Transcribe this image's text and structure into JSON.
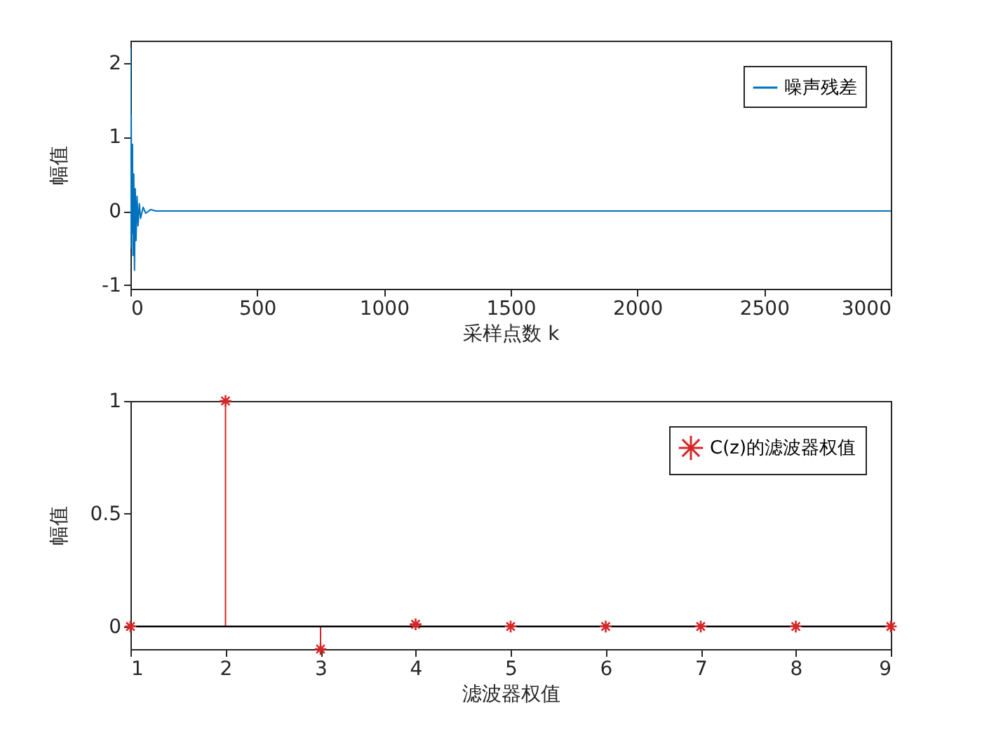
{
  "chart_data": [
    {
      "type": "line",
      "xlabel": "采样点数 k",
      "ylabel": "幅值",
      "xlim": [
        0,
        3000
      ],
      "ylim": [
        -1.05,
        2.3
      ],
      "xticks": [
        0,
        500,
        1000,
        1500,
        2000,
        2500,
        3000
      ],
      "yticks": [
        -1,
        0,
        1,
        2
      ],
      "legend": "top right",
      "grid": false,
      "series": [
        {
          "name": "噪声残差",
          "color": "#0072bd",
          "x": [
            0,
            1,
            3,
            5,
            8,
            10,
            13,
            16,
            19,
            22,
            26,
            30,
            35,
            40,
            50,
            60,
            80,
            100,
            3000
          ],
          "values": [
            2.2,
            -0.5,
            1.3,
            -0.3,
            0.9,
            -0.6,
            0.5,
            -0.8,
            0.3,
            -0.4,
            0.2,
            -0.2,
            0.1,
            -0.1,
            0.05,
            -0.03,
            0.02,
            0,
            0
          ]
        }
      ]
    },
    {
      "type": "lollipop",
      "xlabel": "滤波器权值",
      "ylabel": "幅值",
      "xlim": [
        1,
        9
      ],
      "ylim": [
        -0.1,
        1
      ],
      "xticks": [
        1,
        2,
        3,
        4,
        5,
        6,
        7,
        8,
        9
      ],
      "yticks": [
        0,
        0.5,
        1
      ],
      "legend": "top right",
      "grid": false,
      "marker": "cross",
      "ref_lines": [
        {
          "axis": "y",
          "value": 0,
          "color": "#000000"
        }
      ],
      "series": [
        {
          "name": "C(z)的滤波器权值",
          "color": "#d62728",
          "x": [
            1,
            2,
            3,
            4,
            5,
            6,
            7,
            8,
            9
          ],
          "values": [
            0,
            1,
            -0.1,
            0.01,
            0,
            0,
            0,
            0,
            0
          ]
        }
      ]
    }
  ]
}
